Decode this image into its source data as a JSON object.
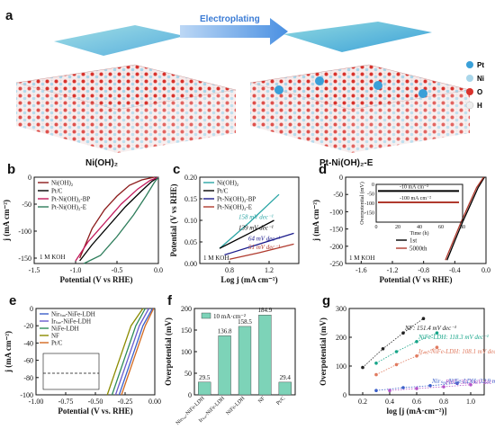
{
  "schematic": {
    "panel": "a",
    "arrow_label": "Electroplating",
    "left_label": "Ni(OH)₂",
    "right_label": "Pt-Ni(OH)₂-E",
    "legend": [
      {
        "label": "Pt",
        "color": "#3aa0d8"
      },
      {
        "label": "Ni",
        "color": "#a9d6ea"
      },
      {
        "label": "O",
        "color": "#d8322c"
      },
      {
        "label": "H",
        "color": "#eeeeee"
      }
    ]
  },
  "chart_data": [
    {
      "panel": "b",
      "type": "line",
      "xlabel": "Potential (V vs RHE)",
      "ylabel": "j (mA cm⁻²)",
      "xlim": [
        -1.5,
        0.0
      ],
      "ylim": [
        -160,
        0
      ],
      "xticks": [
        -1.5,
        -1.0,
        -0.5,
        0.0
      ],
      "yticks": [
        -150,
        -100,
        -50,
        0
      ],
      "xtick_labels": [
        "-1.5",
        "-1.0",
        "-0.5",
        "0.0"
      ],
      "ytick_labels": [
        "-150",
        "-100",
        "-50",
        "0"
      ],
      "annotation": "1 M KOH",
      "series": [
        {
          "name": "Ni(OH)₂",
          "color": "#8b1a1a",
          "x": [
            -0.05,
            -0.2,
            -0.35,
            -0.5,
            -0.65,
            -0.8,
            -0.95
          ],
          "y": [
            0,
            -5,
            -15,
            -35,
            -60,
            -95,
            -150
          ]
        },
        {
          "name": "Pt/C",
          "color": "#000000",
          "x": [
            0,
            -0.08,
            -0.2,
            -0.4,
            -0.6,
            -0.8,
            -0.95
          ],
          "y": [
            0,
            -8,
            -25,
            -55,
            -90,
            -125,
            -155
          ]
        },
        {
          "name": "Pt-Ni(OH)₂-BP",
          "color": "#c2185b",
          "x": [
            0,
            -0.1,
            -0.25,
            -0.45,
            -0.65,
            -0.85,
            -1.0
          ],
          "y": [
            0,
            -6,
            -22,
            -50,
            -85,
            -120,
            -155
          ]
        },
        {
          "name": "Pt-Ni(OH)₂-E",
          "color": "#2e7d5b",
          "x": [
            0,
            -0.05,
            -0.15,
            -0.3,
            -0.5,
            -0.7,
            -0.9
          ],
          "y": [
            0,
            -10,
            -35,
            -70,
            -110,
            -145,
            -160
          ]
        }
      ]
    },
    {
      "panel": "c",
      "type": "line",
      "xlabel": "Log j (mA cm⁻²)",
      "ylabel": "Potential (V vs RHE)",
      "xlim": [
        0.5,
        1.5
      ],
      "ylim": [
        0.0,
        0.2
      ],
      "xticks": [
        0.8,
        1.2
      ],
      "yticks": [
        0.0,
        0.05,
        0.1,
        0.15,
        0.2
      ],
      "xtick_labels": [
        "0.8",
        "1.2"
      ],
      "ytick_labels": [
        "0.00",
        "0.05",
        "0.10",
        "0.15",
        "0.20"
      ],
      "annotation": "1 M KOH",
      "series": [
        {
          "name": "Ni(OH)₂",
          "color": "#2aa5a5",
          "x": [
            0.7,
            1.0,
            1.3
          ],
          "y": [
            0.035,
            0.095,
            0.16
          ],
          "slope_label": "158 mV dec⁻¹"
        },
        {
          "name": "Pt/C",
          "color": "#000000",
          "x": [
            0.7,
            1.0,
            1.25
          ],
          "y": [
            0.035,
            0.07,
            0.1
          ],
          "slope_label": "139 mV dec⁻¹"
        },
        {
          "name": "Pt-Ni(OH)₂-BP",
          "color": "#1a1a8b",
          "x": [
            0.75,
            1.1,
            1.45
          ],
          "y": [
            0.02,
            0.045,
            0.07
          ],
          "slope_label": "64 mV dec⁻¹"
        },
        {
          "name": "Pt-Ni(OH)₂-E",
          "color": "#b03a2e",
          "x": [
            0.8,
            1.1,
            1.45
          ],
          "y": [
            0.01,
            0.025,
            0.045
          ],
          "slope_label": "51 mV dec⁻¹"
        }
      ]
    },
    {
      "panel": "d",
      "type": "line",
      "xlabel": "Potential (V vs RHE)",
      "ylabel": "j (mA cm⁻²)",
      "xlim": [
        -1.8,
        0.0
      ],
      "ylim": [
        -250,
        0
      ],
      "xticks": [
        -1.6,
        -1.2,
        -0.8,
        -0.4,
        0.0
      ],
      "yticks": [
        -250,
        -200,
        -150,
        -100,
        -50,
        0
      ],
      "xtick_labels": [
        "-1.6",
        "-1.2",
        "-0.8",
        "-0.4",
        "0.0"
      ],
      "ytick_labels": [
        "-250",
        "-200",
        "-150",
        "-100",
        "-50",
        "0"
      ],
      "annotation": "1 M KOH",
      "series": [
        {
          "name": "1st",
          "color": "#000000",
          "x": [
            -0.02,
            -0.1,
            -0.2,
            -0.3,
            -0.4,
            -0.5
          ],
          "y": [
            0,
            -30,
            -80,
            -130,
            -185,
            -240
          ]
        },
        {
          "name": "5000th",
          "color": "#b03a2e",
          "x": [
            -0.03,
            -0.12,
            -0.22,
            -0.32,
            -0.42,
            -0.52
          ],
          "y": [
            0,
            -30,
            -80,
            -130,
            -185,
            -240
          ]
        }
      ],
      "inset": {
        "xlabel": "Time (h)",
        "ylabel": "Overpotential (mV)",
        "xlim": [
          0,
          80
        ],
        "ylim": [
          -200,
          0
        ],
        "xticks": [
          0,
          20,
          40,
          60,
          80
        ],
        "yticks": [
          -150,
          -100,
          -50,
          0
        ],
        "xtick_labels": [
          "0",
          "20",
          "40",
          "60",
          "80"
        ],
        "ytick_labels": [
          "-150",
          "-100",
          "-50",
          "0"
        ],
        "series": [
          {
            "name": "-10 mA cm⁻²",
            "color": "#000000",
            "value": -35
          },
          {
            "name": "-100 mA cm⁻²",
            "color": "#b03a2e",
            "value": -95
          }
        ]
      }
    },
    {
      "panel": "e",
      "type": "line",
      "xlabel": "Potential (V vs. RHE)",
      "ylabel": "j (mA cm⁻²)",
      "xlim": [
        -1.0,
        0.0
      ],
      "ylim": [
        -100,
        0
      ],
      "xticks": [
        -1.0,
        -0.75,
        -0.5,
        -0.25,
        0.0
      ],
      "yticks": [
        -100,
        -80,
        -60,
        -40,
        -20,
        0
      ],
      "xtick_labels": [
        "-1.00",
        "-0.75",
        "-0.50",
        "-0.25",
        "0.00"
      ],
      "ytick_labels": [
        "-100",
        "-80",
        "-60",
        "-40",
        "-20",
        "0"
      ],
      "series": [
        {
          "name": "Nirₛₐₐ-NiFe-LDH",
          "color": "#3b5fc9",
          "x": [
            -0.02,
            -0.1,
            -0.2,
            -0.3
          ],
          "y": [
            0,
            -20,
            -60,
            -100
          ]
        },
        {
          "name": "Irₛₐₑ-NiFe-LDH",
          "color": "#6a5acd",
          "x": [
            -0.05,
            -0.13,
            -0.23,
            -0.33
          ],
          "y": [
            0,
            -20,
            -60,
            -100
          ]
        },
        {
          "name": "NiFe-LDH",
          "color": "#2e8b57",
          "x": [
            -0.08,
            -0.16,
            -0.26,
            -0.36
          ],
          "y": [
            0,
            -20,
            -60,
            -100
          ]
        },
        {
          "name": "NF",
          "color": "#8b8b00",
          "x": [
            -0.1,
            -0.2,
            -0.3,
            -0.4
          ],
          "y": [
            0,
            -20,
            -60,
            -100
          ]
        },
        {
          "name": "Pt/C",
          "color": "#d2691e",
          "x": [
            -0.01,
            -0.08,
            -0.18,
            -0.28
          ],
          "y": [
            0,
            -20,
            -60,
            -100
          ]
        }
      ]
    },
    {
      "panel": "f",
      "type": "bar",
      "ylabel": "Overpotential (mV)",
      "legend": "10 mA·cm⁻²",
      "ylim": [
        0,
        200
      ],
      "yticks": [
        0,
        50,
        100,
        150,
        200
      ],
      "ytick_labels": [
        "0",
        "50",
        "100",
        "150",
        "200"
      ],
      "categories": [
        "Nirₛₐₐ-NiFe-LDH",
        "Irₛₐₑ-NiFe-LDH",
        "NiFe-LDH",
        "NF",
        "Pt/C"
      ],
      "values": [
        29.5,
        136.8,
        158.5,
        184.9,
        29.4
      ],
      "value_labels": [
        "29.5",
        "136.8",
        "158.5",
        "184.9",
        "29.4"
      ],
      "color": "#7dd3b8"
    },
    {
      "panel": "g",
      "type": "scatter",
      "xlabel": "log [j (mA·cm⁻²)]",
      "ylabel": "Overpotential (mV)",
      "xlim": [
        0.1,
        1.1
      ],
      "ylim": [
        0,
        300
      ],
      "xticks": [
        0.2,
        0.4,
        0.6,
        0.8,
        1.0
      ],
      "yticks": [
        0,
        100,
        200,
        300
      ],
      "xtick_labels": [
        "0.2",
        "0.4",
        "0.6",
        "0.8",
        "1.0"
      ],
      "ytick_labels": [
        "0",
        "100",
        "200",
        "300"
      ],
      "series": [
        {
          "name": "NF",
          "color": "#222222",
          "x": [
            0.2,
            0.35,
            0.5,
            0.65
          ],
          "y": [
            95,
            160,
            215,
            265
          ],
          "slope_label": "NF: 151.4 mV dec⁻¹"
        },
        {
          "name": "NiFe-LDH",
          "color": "#17a589",
          "x": [
            0.3,
            0.45,
            0.6,
            0.75
          ],
          "y": [
            110,
            150,
            185,
            215
          ],
          "slope_label": "NiFe-LDH: 118.3 mV dec⁻¹"
        },
        {
          "name": "Irₛₐₑ-NiFe-LDH",
          "color": "#e07a5f",
          "x": [
            0.3,
            0.45,
            0.6,
            0.75
          ],
          "y": [
            70,
            105,
            135,
            165
          ],
          "slope_label": "Irₛₐₑ-NiFe-LDH: 108.1 mV dec⁻¹"
        },
        {
          "name": "Nirₛₐₐ-NiFe-LDH",
          "color": "#3b5fc9",
          "x": [
            0.3,
            0.5,
            0.7,
            0.9
          ],
          "y": [
            15,
            25,
            32,
            40
          ],
          "slope_label": "Nirₛₐₐ-NiFe-LDH: 32.9 mV dec⁻¹"
        },
        {
          "name": "Pt/C",
          "color": "#b455c9",
          "x": [
            0.4,
            0.6,
            0.8,
            1.0
          ],
          "y": [
            15,
            22,
            28,
            35
          ],
          "slope_label": "Pt/C: 33.2 mV dec⁻¹"
        }
      ]
    }
  ]
}
